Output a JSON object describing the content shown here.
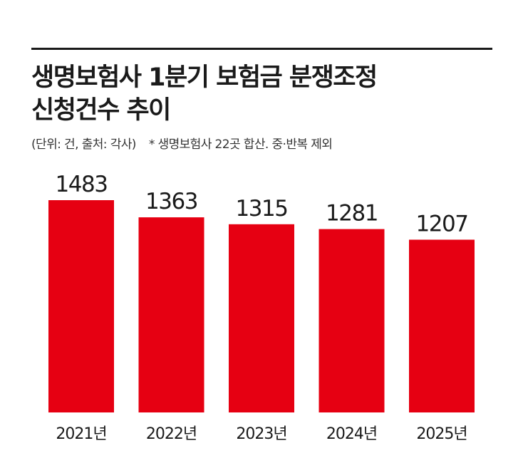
{
  "title": {
    "line1": "생명보험사 1분기 보험금 분쟁조정",
    "line2": "신청건수 추이"
  },
  "note": {
    "unit_source": "(단위: 건, 출처: 각사)",
    "footnote": "* 생명보험사 22곳 합산. 중·반복 제외"
  },
  "colors": {
    "bar": "#e60012",
    "text": "#1a1a1a",
    "rule": "#1a1a1a"
  },
  "chart_data": {
    "type": "bar",
    "title": "생명보험사 1분기 보험금 분쟁조정 신청건수 추이",
    "unit": "건",
    "categories": [
      "2021년",
      "2022년",
      "2023년",
      "2024년",
      "2025년"
    ],
    "values": [
      1483,
      1363,
      1315,
      1281,
      1207
    ],
    "data_labels": [
      "1483",
      "1363",
      "1315",
      "1281",
      "1207"
    ],
    "grid": false,
    "legend": "none"
  }
}
